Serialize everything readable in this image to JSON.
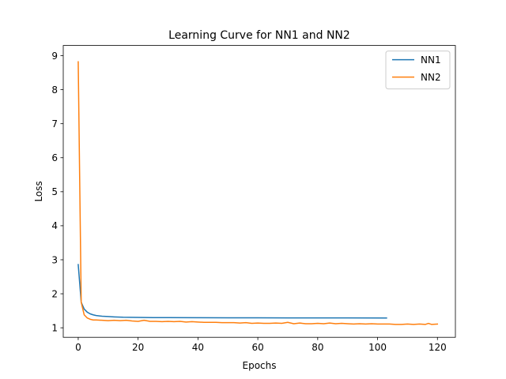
{
  "chart_data": {
    "type": "line",
    "title": "Learning Curve for NN1 and NN2",
    "xlabel": "Epochs",
    "ylabel": "Loss",
    "xlim": [
      -5,
      126
    ],
    "ylim": [
      0.72,
      9.3
    ],
    "xticks": [
      0,
      20,
      40,
      60,
      80,
      100,
      120
    ],
    "yticks": [
      1,
      2,
      3,
      4,
      5,
      6,
      7,
      8,
      9
    ],
    "grid": false,
    "legend_position": "top-right",
    "series": [
      {
        "name": "NN1",
        "color": "#1f77b4",
        "x": [
          0,
          1,
          2,
          3,
          4,
          5,
          6,
          8,
          10,
          12,
          15,
          20,
          25,
          30,
          40,
          50,
          60,
          70,
          80,
          90,
          103
        ],
        "y": [
          2.86,
          1.75,
          1.55,
          1.46,
          1.41,
          1.38,
          1.36,
          1.34,
          1.33,
          1.32,
          1.31,
          1.305,
          1.3,
          1.298,
          1.296,
          1.294,
          1.292,
          1.291,
          1.29,
          1.29,
          1.289
        ]
      },
      {
        "name": "NN2",
        "color": "#ff7f0e",
        "x": [
          0,
          1,
          2,
          3,
          4,
          5,
          6,
          8,
          10,
          12,
          14,
          16,
          18,
          20,
          22,
          24,
          26,
          28,
          30,
          32,
          34,
          36,
          38,
          40,
          42,
          44,
          46,
          48,
          50,
          52,
          54,
          56,
          58,
          60,
          62,
          64,
          66,
          68,
          70,
          72,
          74,
          76,
          78,
          80,
          82,
          84,
          86,
          88,
          90,
          92,
          94,
          96,
          98,
          100,
          102,
          104,
          106,
          108,
          110,
          112,
          114,
          116,
          117,
          118,
          120
        ],
        "y": [
          8.82,
          1.75,
          1.38,
          1.29,
          1.25,
          1.23,
          1.23,
          1.22,
          1.21,
          1.22,
          1.21,
          1.22,
          1.2,
          1.19,
          1.22,
          1.19,
          1.19,
          1.18,
          1.19,
          1.18,
          1.19,
          1.17,
          1.18,
          1.17,
          1.16,
          1.16,
          1.16,
          1.15,
          1.15,
          1.15,
          1.14,
          1.15,
          1.13,
          1.14,
          1.13,
          1.13,
          1.14,
          1.13,
          1.16,
          1.12,
          1.14,
          1.12,
          1.12,
          1.13,
          1.12,
          1.14,
          1.12,
          1.13,
          1.12,
          1.11,
          1.12,
          1.11,
          1.12,
          1.11,
          1.11,
          1.11,
          1.1,
          1.1,
          1.11,
          1.1,
          1.11,
          1.1,
          1.13,
          1.1,
          1.11
        ]
      }
    ]
  }
}
